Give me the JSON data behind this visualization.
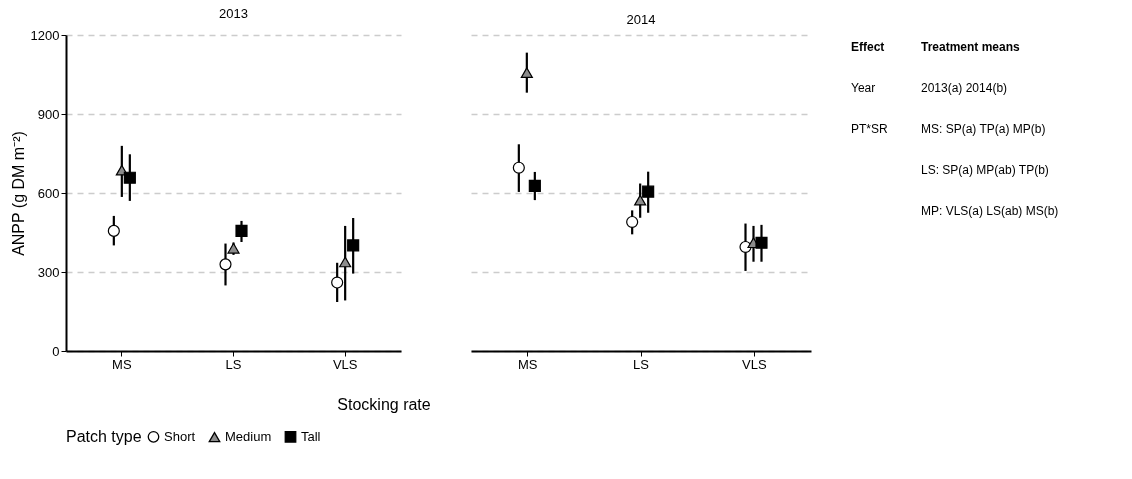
{
  "chart_data": [
    {
      "type": "scatter",
      "title": "2013",
      "xlabel": "Stocking rate",
      "ylabel": "ANPP (g DM m⁻²)",
      "legend_title": "Patch type",
      "legend": "bottom",
      "grid": "y",
      "categories": [
        "MS",
        "LS",
        "VLS"
      ],
      "ylim": [
        0,
        1200
      ],
      "yticks": [
        0,
        300,
        600,
        900,
        1200
      ],
      "series": [
        {
          "name": "Short",
          "color": "#ffffff",
          "marker": "circle",
          "values": [
            456,
            329,
            260
          ],
          "errors": [
            [
              401,
              513
            ],
            [
              249,
              408
            ],
            [
              186,
              335
            ]
          ]
        },
        {
          "name": "Medium",
          "color": "#8c8c8c",
          "marker": "triangle",
          "values": [
            687,
            390,
            338
          ],
          "errors": [
            [
              585,
              779
            ],
            [
              365,
              412
            ],
            [
              192,
              475
            ]
          ]
        },
        {
          "name": "Tall",
          "color": "#000000",
          "marker": "square",
          "values": [
            658,
            456,
            401
          ],
          "errors": [
            [
              570,
              747
            ],
            [
              414,
              494
            ],
            [
              294,
              505
            ]
          ]
        }
      ],
      "annotations": [
        "Effect",
        "Treatment means",
        "Year",
        "2013(a) 2014(b)",
        "PT*SR",
        "MS: SP(a) TP(a) MP(b)",
        "LS: SP(a) MP(ab) TP(b)",
        "MP: VLS(a) LS(ab) MS(b)"
      ]
    },
    {
      "type": "scatter",
      "title": "2014",
      "grid": "y",
      "tick_labels": "x",
      "categories": [
        "MS",
        "LS",
        "VLS"
      ],
      "ylim": [
        0,
        1200
      ],
      "yticks": [
        0,
        300,
        600,
        900,
        1200
      ],
      "series": [
        {
          "name": "Short",
          "color": "#ffffff",
          "marker": "circle",
          "values": [
            696,
            490,
            395
          ],
          "errors": [
            [
              604,
              785
            ],
            [
              443,
              534
            ],
            [
              304,
              484
            ]
          ]
        },
        {
          "name": "Medium",
          "color": "#8c8c8c",
          "marker": "triangle",
          "values": [
            1057,
            573,
            411
          ],
          "errors": [
            [
              981,
              1133
            ],
            [
              506,
              636
            ],
            [
              339,
              475
            ]
          ]
        },
        {
          "name": "Tall",
          "color": "#000000",
          "marker": "square",
          "values": [
            627,
            605,
            411
          ],
          "errors": [
            [
              573,
              680
            ],
            [
              525,
              681
            ],
            [
              339,
              479
            ]
          ]
        }
      ]
    }
  ]
}
